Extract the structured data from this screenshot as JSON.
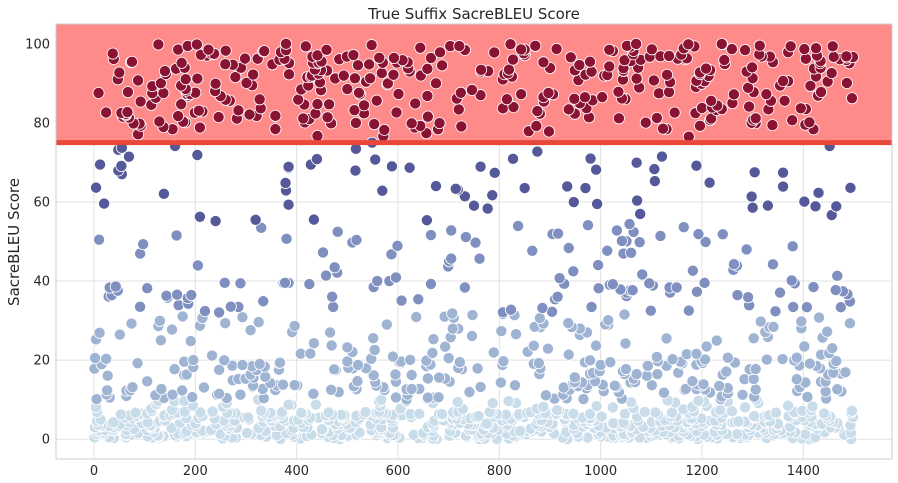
{
  "chart_data": {
    "type": "scatter",
    "title": "True Suffix SacreBLEU Score",
    "xlabel": "",
    "ylabel": "SacreBLEU Score",
    "xlim": [
      -75,
      1575
    ],
    "ylim": [
      -5,
      105
    ],
    "xticks": [
      0,
      200,
      400,
      600,
      800,
      1000,
      1200,
      1400
    ],
    "yticks": [
      0,
      20,
      40,
      60,
      80,
      100
    ],
    "grid": true,
    "threshold": 75,
    "n_points": 1500,
    "x_range": [
      0,
      1499
    ],
    "y_range": [
      0,
      100
    ],
    "highlight_band": {
      "from": 75,
      "to": 105,
      "color": "#ff8a8a"
    },
    "threshold_line_color": "#e8483a",
    "colormap": [
      "#c9dcea",
      "#9fb3d3",
      "#7f90c0",
      "#55599a",
      "#8a1233"
    ],
    "color_breaks": [
      10,
      32,
      55,
      75
    ]
  }
}
